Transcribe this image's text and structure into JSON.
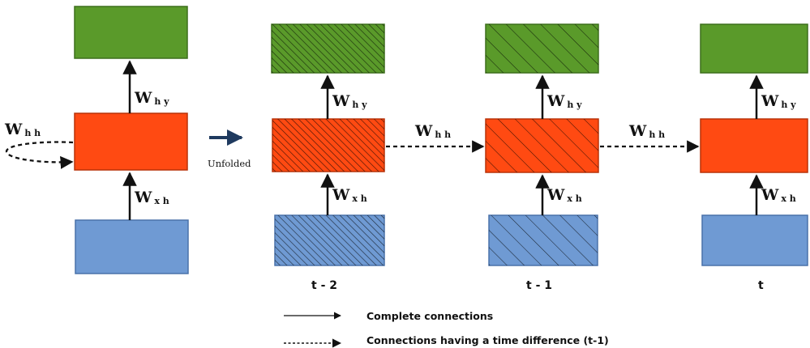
{
  "colors": {
    "output": "#5a9a2a",
    "output_stroke": "#3d6f1c",
    "hidden": "#ff4a12",
    "hidden_stroke": "#b83208",
    "input": "#6f9ad3",
    "input_stroke": "#4a72aa",
    "unfold_arrow": "#1f3a5f",
    "ink": "#111111"
  },
  "weights": {
    "hidden_output": {
      "main": "W",
      "sub": "h y"
    },
    "input_hidden": {
      "main": "W",
      "sub": "x h"
    },
    "hidden_hidden": {
      "main": "W",
      "sub": "h h"
    }
  },
  "unfold_label": "Unfolded",
  "time_steps": {
    "t_minus_2": "t - 2",
    "t_minus_1": "t - 1",
    "t": "t"
  },
  "legend": {
    "solid": "Complete connections",
    "dashed": "Connections having a time difference (t-1)"
  }
}
